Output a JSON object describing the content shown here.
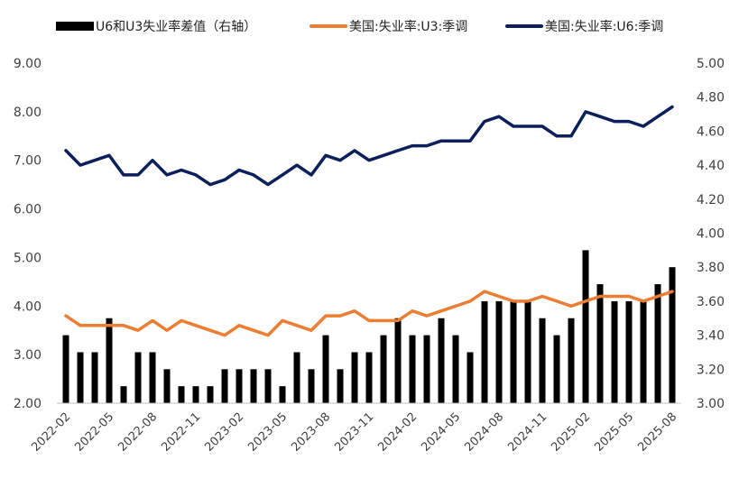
{
  "chart_data": {
    "type": "bar+line",
    "legend": [
      {
        "name": "U6和U3失业率差值（右轴）",
        "type": "bar",
        "color": "#000000"
      },
      {
        "name": "美国:失业率:U3:季调",
        "type": "line",
        "color": "#ED7D31"
      },
      {
        "name": "美国:失业率:U6:季调",
        "type": "line",
        "color": "#0A1F5C"
      }
    ],
    "legend_position": "top",
    "x": [
      "2022-02",
      "2022-03",
      "2022-04",
      "2022-05",
      "2022-06",
      "2022-07",
      "2022-08",
      "2022-09",
      "2022-10",
      "2022-11",
      "2022-12",
      "2023-01",
      "2023-02",
      "2023-03",
      "2023-04",
      "2023-05",
      "2023-06",
      "2023-07",
      "2023-08",
      "2023-09",
      "2023-10",
      "2023-11",
      "2023-12",
      "2024-01",
      "2024-02",
      "2024-03",
      "2024-04",
      "2024-05",
      "2024-06",
      "2024-07",
      "2024-08",
      "2024-09",
      "2024-10",
      "2024-11",
      "2024-12",
      "2025-01",
      "2025-02",
      "2025-03",
      "2025-04",
      "2025-05",
      "2025-06",
      "2025-07",
      "2025-08"
    ],
    "x_tick_labels": [
      "2022-02",
      "2022-05",
      "2022-08",
      "2022-11",
      "2023-02",
      "2023-05",
      "2023-08",
      "2023-11",
      "2024-02",
      "2024-05",
      "2024-08",
      "2024-11",
      "2025-02",
      "2025-05",
      "2025-08"
    ],
    "series": [
      {
        "name": "美国:失业率:U3:季调",
        "axis": "left",
        "values": [
          3.8,
          3.6,
          3.6,
          3.6,
          3.6,
          3.5,
          3.7,
          3.5,
          3.7,
          3.6,
          3.5,
          3.4,
          3.6,
          3.5,
          3.4,
          3.7,
          3.6,
          3.5,
          3.8,
          3.8,
          3.9,
          3.7,
          3.7,
          3.7,
          3.9,
          3.8,
          3.9,
          4.0,
          4.1,
          4.3,
          4.2,
          4.1,
          4.1,
          4.2,
          4.1,
          4.0,
          4.1,
          4.2,
          4.2,
          4.2,
          4.1,
          4.2,
          4.3
        ]
      },
      {
        "name": "美国:失业率:U6:季调",
        "axis": "left",
        "values": [
          7.2,
          6.9,
          7.0,
          7.1,
          6.7,
          6.7,
          7.0,
          6.7,
          6.8,
          6.7,
          6.5,
          6.6,
          6.8,
          6.7,
          6.5,
          6.7,
          6.9,
          6.7,
          7.1,
          7.0,
          7.2,
          7.0,
          7.1,
          7.2,
          7.3,
          7.3,
          7.4,
          7.4,
          7.4,
          7.8,
          7.9,
          7.7,
          7.7,
          7.7,
          7.5,
          7.5,
          8.0,
          7.9,
          7.8,
          7.8,
          7.7,
          7.9,
          8.1
        ]
      },
      {
        "name": "U6和U3失业率差值（右轴）",
        "axis": "right",
        "values": [
          3.4,
          3.3,
          3.3,
          3.5,
          3.1,
          3.3,
          3.3,
          3.2,
          3.1,
          3.1,
          3.1,
          3.2,
          3.2,
          3.2,
          3.2,
          3.1,
          3.3,
          3.2,
          3.4,
          3.2,
          3.3,
          3.3,
          3.4,
          3.5,
          3.4,
          3.4,
          3.5,
          3.4,
          3.3,
          3.6,
          3.6,
          3.6,
          3.6,
          3.5,
          3.4,
          3.5,
          3.9,
          3.7,
          3.6,
          3.6,
          3.6,
          3.7,
          3.8
        ]
      }
    ],
    "y_left": {
      "min": 2.0,
      "max": 9.0,
      "ticks": [
        "2.00",
        "3.00",
        "4.00",
        "5.00",
        "6.00",
        "7.00",
        "8.00",
        "9.00"
      ]
    },
    "y_right": {
      "min": 3.0,
      "max": 5.0,
      "ticks": [
        "3.00",
        "3.20",
        "3.40",
        "3.60",
        "3.80",
        "4.00",
        "4.20",
        "4.40",
        "4.60",
        "4.80",
        "5.00"
      ]
    },
    "grid": false
  }
}
